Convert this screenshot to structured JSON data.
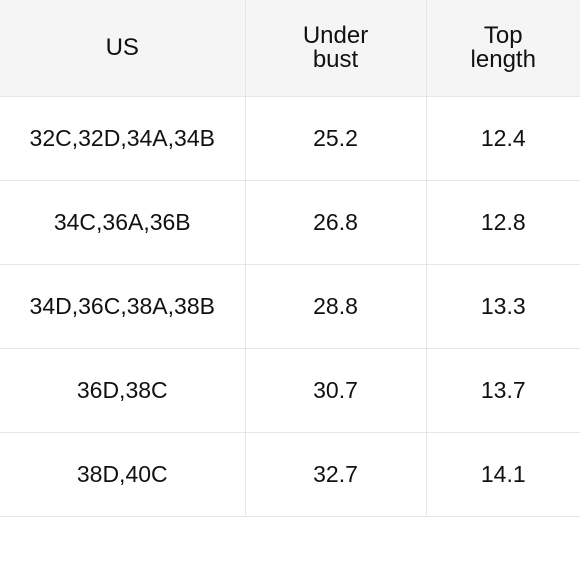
{
  "table": {
    "headers": [
      {
        "lines": [
          "US"
        ]
      },
      {
        "lines": [
          "Under",
          "bust"
        ]
      },
      {
        "lines": [
          "Top",
          "length"
        ]
      }
    ],
    "rows": [
      {
        "us": "32C,32D,34A,34B",
        "under_bust": "25.2",
        "top_length": "12.4"
      },
      {
        "us": "34C,36A,36B",
        "under_bust": "26.8",
        "top_length": "12.8"
      },
      {
        "us": "34D,36C,38A,38B",
        "under_bust": "28.8",
        "top_length": "13.3"
      },
      {
        "us": "36D,38C",
        "under_bust": "30.7",
        "top_length": "13.7"
      },
      {
        "us": "38D,40C",
        "under_bust": "32.7",
        "top_length": "14.1"
      }
    ]
  }
}
